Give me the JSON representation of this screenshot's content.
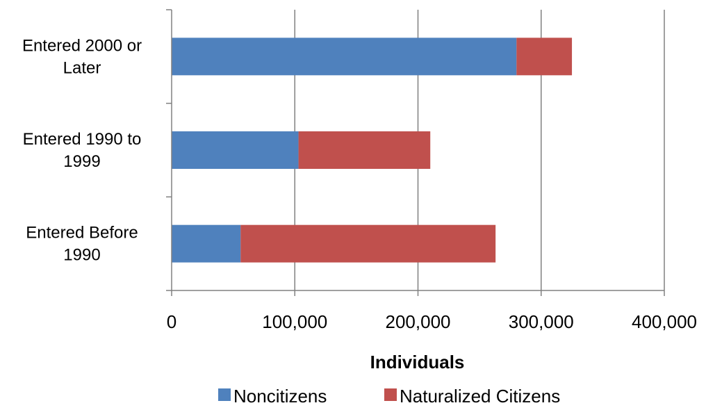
{
  "chart_data": {
    "type": "bar",
    "orientation": "horizontal",
    "stacked": true,
    "categories": [
      "Entered 2000 or Later",
      "Entered 1990 to 1999",
      "Entered Before 1990"
    ],
    "category_lines": [
      [
        "Entered 2000 or",
        "Later"
      ],
      [
        "Entered 1990 to",
        "1999"
      ],
      [
        "Entered Before",
        "1990"
      ]
    ],
    "series": [
      {
        "name": "Noncitizens",
        "color": "#4F81BD",
        "values": [
          280000,
          103000,
          56000
        ]
      },
      {
        "name": "Naturalized Citizens",
        "color": "#C0504D",
        "values": [
          45000,
          107000,
          207000
        ]
      }
    ],
    "xlabel": "Individuals",
    "xlim": [
      0,
      400000
    ],
    "xticks": [
      0,
      100000,
      200000,
      300000,
      400000
    ],
    "xtick_labels": [
      "0",
      "100,000",
      "200,000",
      "300,000",
      "400,000"
    ],
    "grid": "vertical",
    "legend_position": "bottom"
  }
}
